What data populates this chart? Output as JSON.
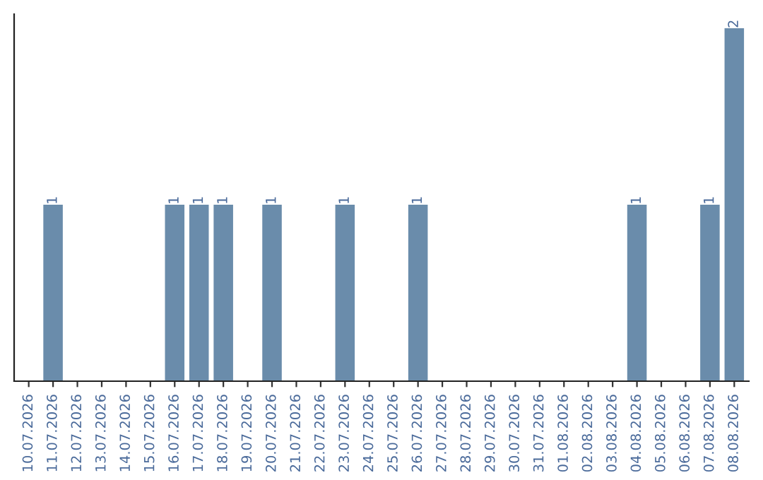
{
  "chart_data": {
    "type": "bar",
    "categories": [
      "10.07.2026",
      "11.07.2026",
      "12.07.2026",
      "13.07.2026",
      "14.07.2026",
      "15.07.2026",
      "16.07.2026",
      "17.07.2026",
      "18.07.2026",
      "19.07.2026",
      "20.07.2026",
      "21.07.2026",
      "22.07.2026",
      "23.07.2026",
      "24.07.2026",
      "25.07.2026",
      "26.07.2026",
      "27.07.2026",
      "28.07.2026",
      "29.07.2026",
      "30.07.2026",
      "31.07.2026",
      "01.08.2026",
      "02.08.2026",
      "03.08.2026",
      "04.08.2026",
      "05.08.2026",
      "06.08.2026",
      "07.08.2026",
      "08.08.2026"
    ],
    "values": [
      0,
      1,
      0,
      0,
      0,
      0,
      1,
      1,
      1,
      0,
      1,
      0,
      0,
      1,
      0,
      0,
      1,
      0,
      0,
      0,
      0,
      0,
      0,
      0,
      0,
      1,
      0,
      0,
      1,
      2
    ],
    "value_labels": [
      null,
      "1",
      null,
      null,
      null,
      null,
      "1",
      "1",
      "1",
      null,
      "1",
      null,
      null,
      "1",
      null,
      null,
      "1",
      null,
      null,
      null,
      null,
      null,
      null,
      null,
      null,
      "1",
      null,
      null,
      "1",
      "2"
    ],
    "color": "#6a8cab",
    "tick_labels": "x",
    "grid": false,
    "legend": false
  }
}
